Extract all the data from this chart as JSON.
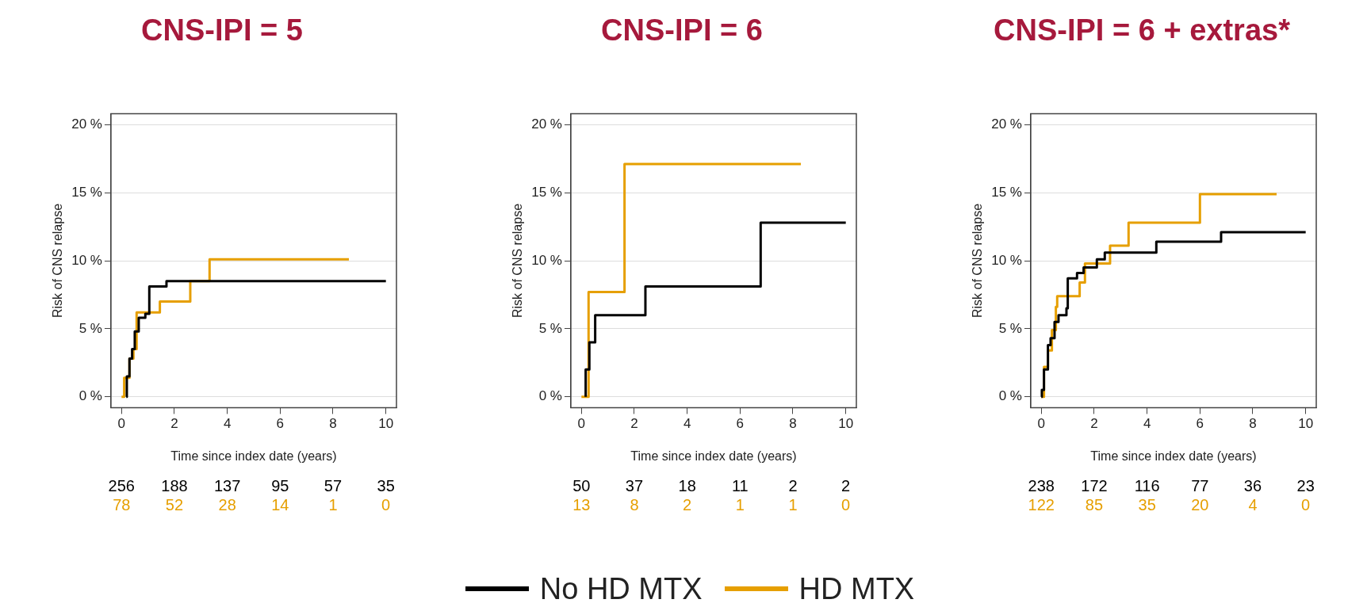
{
  "chart_data": [
    {
      "type": "step",
      "title": "CNS-IPI = 5",
      "xlabel": "Time since index date (years)",
      "ylabel": "Risk of CNS relapse",
      "xlim": [
        -0.4,
        10.4
      ],
      "xticks": [
        0,
        2,
        4,
        6,
        8,
        10
      ],
      "ylim": [
        -0.8,
        20.8
      ],
      "yticks": [
        {
          "value": 0,
          "label": "0 %"
        },
        {
          "value": 5,
          "label": "5 %"
        },
        {
          "value": 10,
          "label": "10 %"
        },
        {
          "value": 15,
          "label": "15 %"
        },
        {
          "value": 20,
          "label": "20 %"
        }
      ],
      "grid": "y",
      "series": [
        {
          "color": "#000000",
          "x": [
            0.18,
            0.2,
            0.3,
            0.4,
            0.5,
            0.65,
            0.9,
            1.05,
            1.7,
            10
          ],
          "values": [
            0,
            1.5,
            2.8,
            3.5,
            4.8,
            5.8,
            6.1,
            8.1,
            8.5,
            8.5
          ]
        },
        {
          "color": "#e69f00",
          "x": [
            0,
            0.1,
            0.3,
            0.45,
            0.57,
            1.45,
            2.6,
            3.33,
            8.6
          ],
          "values": [
            0,
            1.4,
            2.8,
            3.5,
            6.2,
            7.0,
            8.5,
            10.1,
            10.1
          ]
        }
      ],
      "annotations": [
        "256",
        "188",
        "137",
        "95",
        "57",
        "35",
        "78",
        "52",
        "28",
        "14",
        "1",
        "0"
      ]
    },
    {
      "type": "step",
      "title": "CNS-IPI = 6",
      "xlabel": "Time since index date (years)",
      "ylabel": "Risk of CNS relapse",
      "xlim": [
        -0.4,
        10.4
      ],
      "xticks": [
        0,
        2,
        4,
        6,
        8,
        10
      ],
      "ylim": [
        -0.8,
        20.8
      ],
      "yticks": [
        {
          "value": 0,
          "label": "0 %"
        },
        {
          "value": 5,
          "label": "5 %"
        },
        {
          "value": 10,
          "label": "10 %"
        },
        {
          "value": 15,
          "label": "15 %"
        },
        {
          "value": 20,
          "label": "20 %"
        }
      ],
      "grid": "y",
      "legend": "bottom",
      "series": [
        {
          "name": "No HD MTX",
          "color": "#000000",
          "x": [
            0.16,
            0.16,
            0.3,
            0.52,
            2.42,
            6.78,
            10
          ],
          "values": [
            0,
            2,
            4,
            6,
            8.1,
            12.8,
            12.8
          ]
        },
        {
          "name": "HD MTX",
          "color": "#e69f00",
          "x": [
            0,
            0.27,
            1.63,
            8.3
          ],
          "values": [
            0,
            7.7,
            17.1,
            17.1
          ]
        }
      ],
      "annotations": [
        "50",
        "37",
        "18",
        "11",
        "2",
        "2",
        "13",
        "8",
        "2",
        "1",
        "1",
        "0"
      ]
    },
    {
      "type": "step",
      "title": "CNS-IPI = 6 + extras*",
      "xlabel": "Time since index date (years)",
      "ylabel": "Risk of CNS relapse",
      "xlim": [
        -0.4,
        10.4
      ],
      "xticks": [
        0,
        2,
        4,
        6,
        8,
        10
      ],
      "ylim": [
        -0.8,
        20.8
      ],
      "yticks": [
        {
          "value": 0,
          "label": "0 %"
        },
        {
          "value": 5,
          "label": "5 %"
        },
        {
          "value": 10,
          "label": "10 %"
        },
        {
          "value": 15,
          "label": "15 %"
        },
        {
          "value": 20,
          "label": "20 %"
        }
      ],
      "grid": "y",
      "series": [
        {
          "color": "#000000",
          "x": [
            0,
            0.02,
            0.1,
            0.25,
            0.35,
            0.5,
            0.65,
            0.95,
            1.0,
            1.35,
            1.6,
            2.1,
            2.4,
            4.35,
            6.8,
            10
          ],
          "values": [
            0,
            0.5,
            2.0,
            3.8,
            4.3,
            5.5,
            6.0,
            6.5,
            8.7,
            9.1,
            9.5,
            10.1,
            10.6,
            11.4,
            12.1,
            12.1
          ]
        },
        {
          "color": "#e69f00",
          "x": [
            0,
            0.1,
            0.25,
            0.4,
            0.55,
            0.6,
            1.45,
            1.65,
            2.6,
            3.3,
            6.0,
            8.9
          ],
          "values": [
            0,
            2.2,
            3.4,
            4.9,
            6.6,
            7.4,
            8.4,
            9.8,
            11.1,
            12.8,
            14.9,
            14.9
          ]
        }
      ],
      "annotations": [
        "238",
        "172",
        "116",
        "77",
        "36",
        "23",
        "122",
        "85",
        "35",
        "20",
        "4",
        "0"
      ]
    }
  ]
}
